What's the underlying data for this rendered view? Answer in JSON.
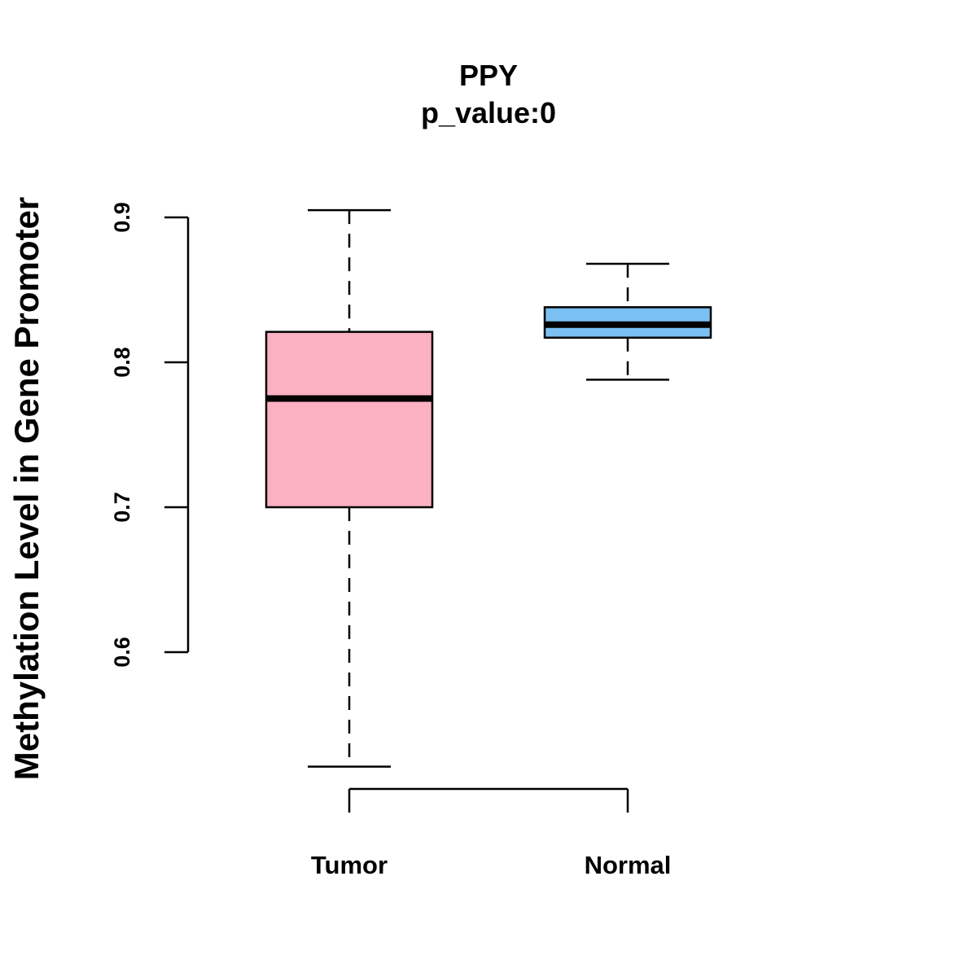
{
  "chart_data": {
    "type": "box",
    "title": "PPY",
    "subtitle": "p_value:0",
    "xlabel": "",
    "ylabel": "Methylation Level in Gene Promoter",
    "ylim": [
      0.5,
      0.92
    ],
    "yticks": [
      0.6,
      0.7,
      0.8,
      0.9
    ],
    "ytick_labels": [
      "0.6",
      "0.7",
      "0.8",
      "0.9"
    ],
    "categories": [
      "Tumor",
      "Normal"
    ],
    "boxes": [
      {
        "name": "Tumor",
        "min": 0.521,
        "q1": 0.7,
        "median": 0.775,
        "q3": 0.821,
        "max": 0.905,
        "color": "#FBB1C1"
      },
      {
        "name": "Normal",
        "min": 0.788,
        "q1": 0.817,
        "median": 0.826,
        "q3": 0.838,
        "max": 0.868,
        "color": "#7AC0F3"
      }
    ]
  }
}
